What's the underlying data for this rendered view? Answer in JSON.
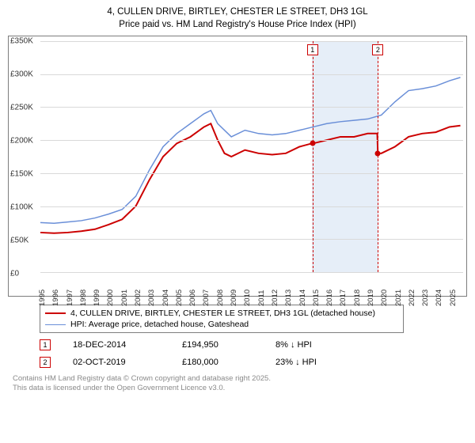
{
  "title": {
    "line1": "4, CULLEN DRIVE, BIRTLEY, CHESTER LE STREET, DH3 1GL",
    "line2": "Price paid vs. HM Land Registry's House Price Index (HPI)"
  },
  "chart": {
    "type": "line",
    "xlim": [
      1995,
      2026
    ],
    "ylim": [
      0,
      350000
    ],
    "ytick_step": 50000,
    "background_color": "#ffffff",
    "grid_color": "#d9d9d9",
    "border_color": "#7d7d7d",
    "highlight_band": {
      "from": 2014.9,
      "to": 2019.8,
      "color": "#e6eef8"
    },
    "y_ticks": [
      {
        "v": 0,
        "label": "£0"
      },
      {
        "v": 50000,
        "label": "£50K"
      },
      {
        "v": 100000,
        "label": "£100K"
      },
      {
        "v": 150000,
        "label": "£150K"
      },
      {
        "v": 200000,
        "label": "£200K"
      },
      {
        "v": 250000,
        "label": "£250K"
      },
      {
        "v": 300000,
        "label": "£300K"
      },
      {
        "v": 350000,
        "label": "£350K"
      }
    ],
    "x_ticks": [
      1995,
      1996,
      1997,
      1998,
      1999,
      2000,
      2001,
      2002,
      2003,
      2004,
      2005,
      2006,
      2007,
      2008,
      2009,
      2010,
      2011,
      2012,
      2013,
      2014,
      2015,
      2016,
      2017,
      2018,
      2019,
      2020,
      2021,
      2022,
      2023,
      2024,
      2025
    ],
    "series": [
      {
        "id": "price_paid",
        "label": "4, CULLEN DRIVE, BIRTLEY, CHESTER LE STREET, DH3 1GL (detached house)",
        "color": "#cc0000",
        "line_width": 2,
        "data": [
          [
            1995,
            60000
          ],
          [
            1996,
            59000
          ],
          [
            1997,
            60000
          ],
          [
            1998,
            62000
          ],
          [
            1999,
            65000
          ],
          [
            2000,
            72000
          ],
          [
            2001,
            80000
          ],
          [
            2002,
            100000
          ],
          [
            2003,
            140000
          ],
          [
            2004,
            175000
          ],
          [
            2005,
            195000
          ],
          [
            2006,
            205000
          ],
          [
            2007,
            220000
          ],
          [
            2007.5,
            225000
          ],
          [
            2008,
            200000
          ],
          [
            2008.5,
            180000
          ],
          [
            2009,
            175000
          ],
          [
            2010,
            185000
          ],
          [
            2011,
            180000
          ],
          [
            2012,
            178000
          ],
          [
            2013,
            180000
          ],
          [
            2014,
            190000
          ],
          [
            2014.9,
            195000
          ],
          [
            2015,
            195000
          ],
          [
            2016,
            200000
          ],
          [
            2017,
            205000
          ],
          [
            2018,
            205000
          ],
          [
            2019,
            210000
          ],
          [
            2019.7,
            210000
          ],
          [
            2019.75,
            180000
          ],
          [
            2020,
            180000
          ],
          [
            2021,
            190000
          ],
          [
            2022,
            205000
          ],
          [
            2023,
            210000
          ],
          [
            2024,
            212000
          ],
          [
            2025,
            220000
          ],
          [
            2025.8,
            222000
          ]
        ]
      },
      {
        "id": "hpi",
        "label": "HPI: Average price, detached house, Gateshead",
        "color": "#6a8fd8",
        "line_width": 1.5,
        "data": [
          [
            1995,
            75000
          ],
          [
            1996,
            74000
          ],
          [
            1997,
            76000
          ],
          [
            1998,
            78000
          ],
          [
            1999,
            82000
          ],
          [
            2000,
            88000
          ],
          [
            2001,
            95000
          ],
          [
            2002,
            115000
          ],
          [
            2003,
            155000
          ],
          [
            2004,
            190000
          ],
          [
            2005,
            210000
          ],
          [
            2006,
            225000
          ],
          [
            2007,
            240000
          ],
          [
            2007.5,
            245000
          ],
          [
            2008,
            225000
          ],
          [
            2009,
            205000
          ],
          [
            2010,
            215000
          ],
          [
            2011,
            210000
          ],
          [
            2012,
            208000
          ],
          [
            2013,
            210000
          ],
          [
            2014,
            215000
          ],
          [
            2015,
            220000
          ],
          [
            2016,
            225000
          ],
          [
            2017,
            228000
          ],
          [
            2018,
            230000
          ],
          [
            2019,
            232000
          ],
          [
            2020,
            238000
          ],
          [
            2021,
            258000
          ],
          [
            2022,
            275000
          ],
          [
            2023,
            278000
          ],
          [
            2024,
            282000
          ],
          [
            2025,
            290000
          ],
          [
            2025.8,
            295000
          ]
        ]
      }
    ],
    "markers": [
      {
        "n": "1",
        "x": 2014.96,
        "y": 194950
      },
      {
        "n": "2",
        "x": 2019.75,
        "y": 180000
      }
    ]
  },
  "legend": {
    "items": [
      {
        "color": "#cc0000",
        "width": 2,
        "label": "4, CULLEN DRIVE, BIRTLEY, CHESTER LE STREET, DH3 1GL (detached house)"
      },
      {
        "color": "#6a8fd8",
        "width": 1.5,
        "label": "HPI: Average price, detached house, Gateshead"
      }
    ]
  },
  "sales": [
    {
      "n": "1",
      "date": "18-DEC-2014",
      "price": "£194,950",
      "delta": "8% ↓ HPI"
    },
    {
      "n": "2",
      "date": "02-OCT-2019",
      "price": "£180,000",
      "delta": "23% ↓ HPI"
    }
  ],
  "footer": {
    "line1": "Contains HM Land Registry data © Crown copyright and database right 2025.",
    "line2": "This data is licensed under the Open Government Licence v3.0."
  }
}
